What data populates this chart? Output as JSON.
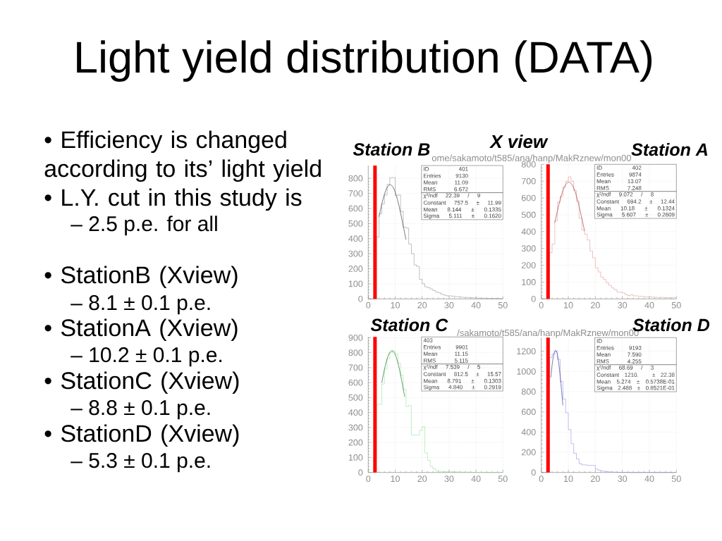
{
  "chart_data": [
    {
      "type": "other",
      "title": "Light yield distribution (DATA)",
      "subtitle": "X view",
      "annotations": [
        "• Efficiency is changed according to its’ light yield",
        "• L.Y. cut in this study is",
        "– 2.5 p.e. for all",
        "• StationB (Xview)",
        "– 8.1 ± 0.1 p.e.",
        "• StationA (Xview)",
        "– 10.2 ± 0.1 p.e.",
        "• StationC (Xview)",
        "– 8.8 ± 0.1 p.e.",
        "• StationD (Xview)",
        "– 5.3 ± 0.1 p.e."
      ]
    },
    {
      "type": "histogram",
      "title": "Station B",
      "subtitle": "ome/sakamoto/t585/ana/hanp/MakRznew/mon00",
      "bins": [
        0,
        1,
        2,
        3,
        4,
        5,
        6,
        7,
        8,
        9,
        10,
        11,
        12,
        13,
        14,
        15,
        16,
        17,
        18,
        19,
        20,
        21,
        22,
        23,
        24,
        25,
        26,
        27,
        28,
        29,
        30,
        31,
        32,
        33,
        34,
        35,
        36,
        37,
        38,
        39,
        40,
        41,
        42,
        43,
        44,
        45,
        46,
        47,
        48,
        49,
        50
      ],
      "series": [
        {
          "type": "histogram",
          "color": "#808080",
          "values": [
            0,
            0,
            0,
            410,
            565,
            630,
            690,
            760,
            805,
            805,
            685,
            690,
            580,
            475,
            470,
            365,
            300,
            225,
            215,
            130,
            100,
            80,
            75,
            65,
            55,
            45,
            40,
            30,
            25,
            20,
            20,
            18,
            15,
            15,
            12,
            10,
            10,
            8,
            8,
            6,
            6,
            5,
            5,
            4,
            4,
            3,
            3,
            3,
            2,
            2
          ]
        },
        {
          "type": "line",
          "color": "#404040",
          "x": [
            4,
            5,
            6,
            7,
            8,
            9,
            10,
            11,
            12,
            13,
            14
          ],
          "values": [
            545,
            627,
            694,
            739,
            757,
            747,
            709,
            648,
            570,
            482,
            393
          ]
        }
      ],
      "xlim": [
        0,
        50
      ],
      "ylim": [
        0,
        885
      ],
      "xticks": [
        0,
        10,
        20,
        30,
        40,
        50
      ],
      "yticks": [
        0,
        100,
        200,
        300,
        400,
        500,
        600,
        700,
        800
      ],
      "grid": true,
      "ref_lines": [
        {
          "axis": "x",
          "value": 2.5,
          "color": "#ff0000"
        }
      ],
      "annotations": [
        "ID 401",
        "Entries 9130",
        "Mean 11.09",
        "RMS 6.672",
        "χ²/ndf 22.39 / 9",
        "Constant 757.5 ± 11.99",
        "Mean 8.144 ± 0.1335",
        "Sigma 5.111 ± 0.1620"
      ]
    },
    {
      "type": "histogram",
      "title": "Station A",
      "bins": [
        0,
        1,
        2,
        3,
        4,
        5,
        6,
        7,
        8,
        9,
        10,
        11,
        12,
        13,
        14,
        15,
        16,
        17,
        18,
        19,
        20,
        21,
        22,
        23,
        24,
        25,
        26,
        27,
        28,
        29,
        30,
        31,
        32,
        33,
        34,
        35,
        36,
        37,
        38,
        39,
        40,
        41,
        42,
        43,
        44,
        45,
        46,
        47,
        48,
        49,
        50
      ],
      "series": [
        {
          "type": "histogram",
          "color": "#e08080",
          "values": [
            0,
            0,
            0,
            275,
            325,
            465,
            575,
            610,
            665,
            700,
            725,
            700,
            645,
            580,
            480,
            410,
            385,
            350,
            285,
            245,
            185,
            160,
            130,
            115,
            95,
            80,
            65,
            55,
            40,
            40,
            35,
            25,
            20,
            25,
            18,
            18,
            15,
            15,
            12,
            12,
            12,
            10,
            10,
            8,
            10,
            8,
            8,
            6,
            8,
            8
          ]
        },
        {
          "type": "line",
          "color": "#a04848",
          "x": [
            5,
            6,
            7,
            8,
            9,
            10,
            11,
            12,
            13,
            14,
            15,
            16
          ],
          "values": [
            453,
            526,
            591,
            644,
            679,
            694,
            687,
            659,
            612,
            550,
            480,
            405
          ]
        }
      ],
      "xlim": [
        0,
        50
      ],
      "ylim": [
        0,
        800
      ],
      "xticks": [
        0,
        10,
        20,
        30,
        40,
        50
      ],
      "yticks": [
        0,
        100,
        200,
        300,
        400,
        500,
        600,
        700,
        800
      ],
      "grid": true,
      "ref_lines": [
        {
          "axis": "x",
          "value": 2.5,
          "color": "#ff0000"
        }
      ],
      "annotations": [
        "ID 402",
        "Entries 9874",
        "Mean 13.07",
        "RMS 7.248",
        "χ²/ndf 9.072 / 8",
        "Constant 694.2 ± 12.44",
        "Mean 10.18 ± 0.1324",
        "Sigma 5.607 ± 0.2609"
      ]
    },
    {
      "type": "histogram",
      "title": "Station C",
      "subtitle": "/sakamoto/t585/ana/hanp/MakRznew/mon00",
      "bins": [
        0,
        1,
        2,
        3,
        4,
        5,
        6,
        7,
        8,
        9,
        10,
        11,
        12,
        13,
        14,
        15,
        16,
        17,
        18,
        19,
        20,
        21,
        22,
        23,
        24,
        25,
        26,
        27,
        28,
        29,
        30,
        31,
        32,
        33,
        34,
        35,
        36,
        37,
        38,
        39,
        40,
        41,
        42,
        43,
        44,
        45,
        46,
        47,
        48,
        49,
        50
      ],
      "series": [
        {
          "type": "histogram",
          "color": "#80e080",
          "values": [
            0,
            0,
            100,
            455,
            455,
            590,
            690,
            760,
            800,
            812,
            790,
            730,
            650,
            555,
            440,
            447,
            250,
            250,
            250,
            281,
            306,
            130,
            81,
            40,
            24,
            12,
            8,
            8,
            6,
            6,
            5,
            5,
            4,
            3,
            3,
            2,
            2,
            2,
            1,
            1,
            1,
            1,
            1,
            0,
            0,
            0,
            0,
            0,
            0,
            0
          ]
        },
        {
          "type": "line",
          "color": "#207020",
          "x": [
            5,
            6,
            7,
            8,
            9,
            10,
            11,
            12,
            13,
            13.5
          ],
          "values": [
            598,
            688,
            759,
            802,
            812,
            788,
            732,
            652,
            557,
            506
          ]
        }
      ],
      "xlim": [
        0,
        50
      ],
      "ylim": [
        0,
        905
      ],
      "xticks": [
        0,
        10,
        20,
        30,
        40,
        50
      ],
      "yticks": [
        0,
        100,
        200,
        300,
        400,
        500,
        600,
        700,
        800,
        900
      ],
      "grid": true,
      "ref_lines": [
        {
          "axis": "x",
          "value": 2.5,
          "color": "#ff0000"
        }
      ],
      "annotations": [
        "403",
        "Entries 9901",
        "Mean 11.15",
        "RMS 5.115",
        "χ²/ndf 7.539 / 5",
        "Constant 812.5 ± 15.57",
        "Mean 8.791 ± 0.1303",
        "Sigma 4.840 ± 0.2919"
      ]
    },
    {
      "type": "histogram",
      "title": "Station D",
      "bins": [
        0,
        1,
        2,
        3,
        4,
        5,
        6,
        7,
        8,
        9,
        10,
        11,
        12,
        13,
        14,
        15,
        16,
        17,
        18,
        19,
        20,
        21,
        22,
        23,
        24,
        25,
        26,
        27,
        28,
        29,
        30,
        31,
        32,
        33,
        34,
        35,
        36,
        37,
        38,
        39,
        40,
        41,
        42,
        43,
        44,
        45,
        46,
        47,
        48,
        49,
        50
      ],
      "series": [
        {
          "type": "histogram",
          "color": "#8080e0",
          "values": [
            0,
            0,
            880,
            1140,
            1170,
            1200,
            1120,
            900,
            727,
            590,
            425,
            285,
            190,
            133,
            86,
            75,
            75,
            70,
            70,
            70,
            33,
            23,
            15,
            12,
            8,
            5,
            5,
            3,
            2,
            2,
            1,
            1,
            1,
            0,
            0,
            0,
            0,
            0,
            0,
            0,
            0,
            0,
            0,
            0,
            0,
            0,
            0,
            0,
            0,
            0
          ]
        },
        {
          "type": "line",
          "color": "#4040a0",
          "x": [
            3.5,
            4,
            4.5,
            5,
            5.5,
            6,
            6.5,
            7,
            7.5,
            8
          ],
          "values": [
            938,
            1061,
            1153,
            1203,
            1205,
            1160,
            1072,
            951,
            811,
            664
          ]
        }
      ],
      "xlim": [
        0,
        50
      ],
      "ylim": [
        0,
        1335
      ],
      "xticks": [
        0,
        10,
        20,
        30,
        40,
        50
      ],
      "yticks": [
        0,
        200,
        400,
        600,
        800,
        1000,
        1200
      ],
      "grid": true,
      "ref_lines": [
        {
          "axis": "x",
          "value": 2.5,
          "color": "#ff0000"
        }
      ],
      "annotations": [
        "ID",
        "Entries 9193",
        "Mean 7.590",
        "RMS 4.255",
        "χ²/ndf 68.69 / 3",
        "Constant 1210. ± 22.38",
        "Mean 5.274 ± 0.5738E-01",
        "Sigma 2.488 ± 0.8521E-01"
      ]
    }
  ]
}
